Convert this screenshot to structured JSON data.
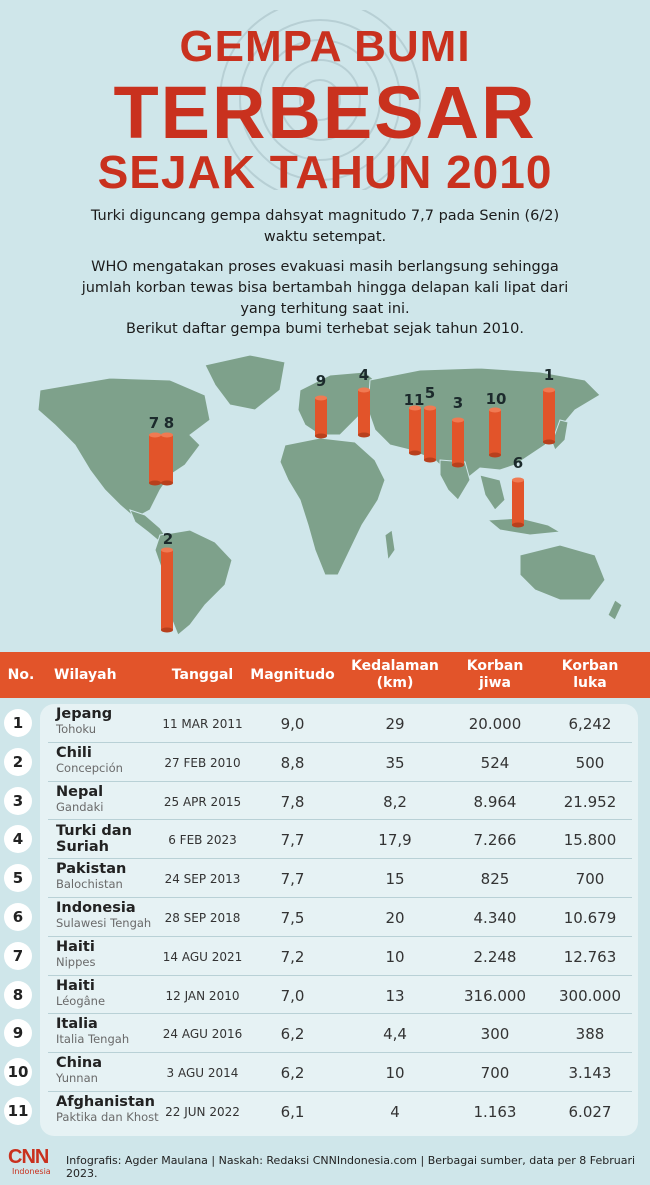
{
  "header": {
    "line1": "GEMPA BUMI",
    "line2": "TERBESAR",
    "line3": "SEJAK TAHUN 2010"
  },
  "intro": {
    "p1": "Turki diguncang gempa dahsyat magnitudo 7,7 pada Senin (6/2) waktu setempat.",
    "p2": "WHO mengatakan proses evakuasi masih berlangsung sehingga jumlah korban tewas bisa bertambah hingga delapan kali lipat dari yang terhitung saat ini.",
    "p3": "Berikut daftar gempa bumi terhebat sejak tahun 2010."
  },
  "map_markers": [
    "1",
    "2",
    "3",
    "4",
    "5",
    "6",
    "7",
    "8",
    "9",
    "10",
    "11"
  ],
  "table": {
    "headers": {
      "no": "No.",
      "region": "Wilayah",
      "date": "Tanggal",
      "magnitude": "Magnitudo",
      "depth": "Kedalaman (km)",
      "dead": "Korban jiwa",
      "injured": "Korban luka"
    },
    "rows": [
      {
        "no": "1",
        "name": "Jepang",
        "sub": "Tohoku",
        "date": "11 MAR 2011",
        "magnitude": "9,0",
        "depth": "29",
        "dead": "20.000",
        "injured": "6,242"
      },
      {
        "no": "2",
        "name": "Chili",
        "sub": "Concepción",
        "date": "27 FEB 2010",
        "magnitude": "8,8",
        "depth": "35",
        "dead": "524",
        "injured": "500"
      },
      {
        "no": "3",
        "name": "Nepal",
        "sub": "Gandaki",
        "date": "25 APR 2015",
        "magnitude": "7,8",
        "depth": "8,2",
        "dead": "8.964",
        "injured": "21.952"
      },
      {
        "no": "4",
        "name": "Turki dan Suriah",
        "sub": "",
        "date": "6 FEB 2023",
        "magnitude": "7,7",
        "depth": "17,9",
        "dead": "7.266",
        "injured": "15.800"
      },
      {
        "no": "5",
        "name": "Pakistan",
        "sub": "Balochistan",
        "date": "24 SEP 2013",
        "magnitude": "7,7",
        "depth": "15",
        "dead": "825",
        "injured": "700"
      },
      {
        "no": "6",
        "name": "Indonesia",
        "sub": "Sulawesi Tengah",
        "date": "28 SEP 2018",
        "magnitude": "7,5",
        "depth": "20",
        "dead": "4.340",
        "injured": "10.679"
      },
      {
        "no": "7",
        "name": "Haiti",
        "sub": "Nippes",
        "date": "14 AGU 2021",
        "magnitude": "7,2",
        "depth": "10",
        "dead": "2.248",
        "injured": "12.763"
      },
      {
        "no": "8",
        "name": "Haiti",
        "sub": "Léogâne",
        "date": "12 JAN 2010",
        "magnitude": "7,0",
        "depth": "13",
        "dead": "316.000",
        "injured": "300.000"
      },
      {
        "no": "9",
        "name": "Italia",
        "sub": "Italia Tengah",
        "date": "24 AGU 2016",
        "magnitude": "6,2",
        "depth": "4,4",
        "dead": "300",
        "injured": "388"
      },
      {
        "no": "10",
        "name": "China",
        "sub": "Yunnan",
        "date": "3 AGU 2014",
        "magnitude": "6,2",
        "depth": "10",
        "dead": "700",
        "injured": "3.143"
      },
      {
        "no": "11",
        "name": "Afghanistan",
        "sub": "Paktika dan Khost",
        "date": "22 JUN 2022",
        "magnitude": "6,1",
        "depth": "4",
        "dead": "1.163",
        "injured": "6.027"
      }
    ]
  },
  "footer": {
    "logo_main": "CNN",
    "logo_sub": "Indonesia",
    "credit": "Infografis: Agder Maulana | Naskah: Redaksi CNNIndonesia.com | Berbagai sumber, data per 8 Februari 2023."
  },
  "colors": {
    "accent": "#c9311e",
    "header_bar": "#e2542a",
    "background": "#cfe6ea",
    "land": "#7ea18b",
    "pillar": "#e2542a"
  }
}
